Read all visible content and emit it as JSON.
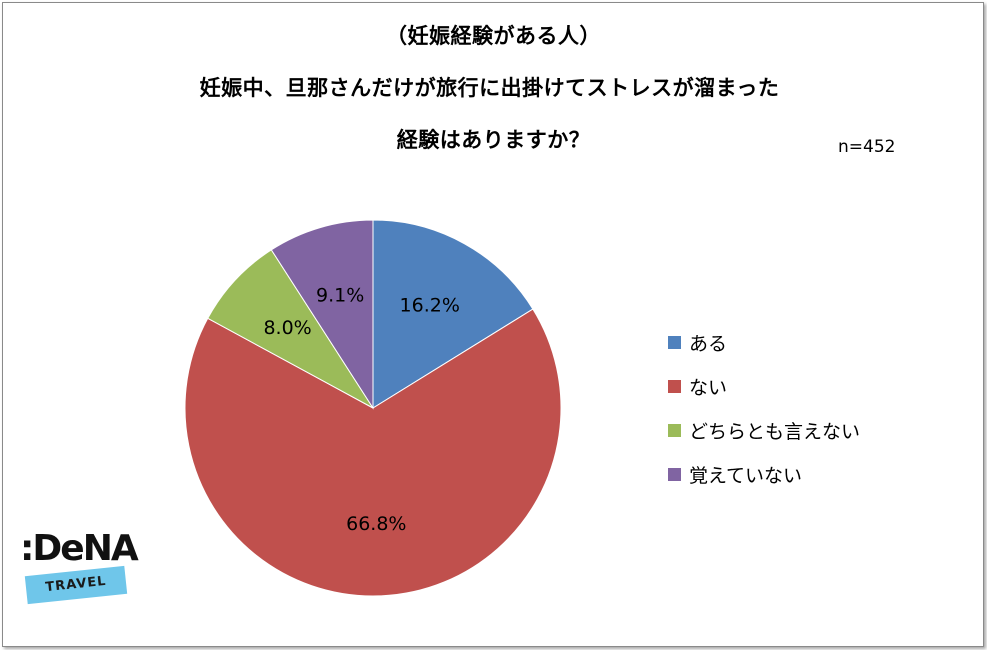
{
  "header": {
    "line1": "（妊娠経験がある人）",
    "line2": "妊娠中、旦那さんだけが旅行に出掛けてストレスが溜まった",
    "line3": "経験はありますか？"
  },
  "sample_size": "n=452",
  "logo": {
    "brand": ":DeNA",
    "sub": "TRAVEL"
  },
  "colors": {
    "aru": "#4f81bd",
    "nai": "#c0504d",
    "dochira": "#9bbb59",
    "oboete": "#8064a2"
  },
  "chart_data": {
    "type": "pie",
    "title": "（妊娠経験がある人） 妊娠中、旦那さんだけが旅行に出掛けてストレスが溜まった 経験はありますか？",
    "categories": [
      "ある",
      "ない",
      "どちらとも言えない",
      "覚えていない"
    ],
    "values": [
      16.2,
      66.8,
      8.0,
      9.1
    ],
    "labels": [
      "16.2%",
      "66.8%",
      "8.0%",
      "9.1%"
    ],
    "colors": [
      "#4f81bd",
      "#c0504d",
      "#9bbb59",
      "#8064a2"
    ],
    "legend_position": "right"
  }
}
